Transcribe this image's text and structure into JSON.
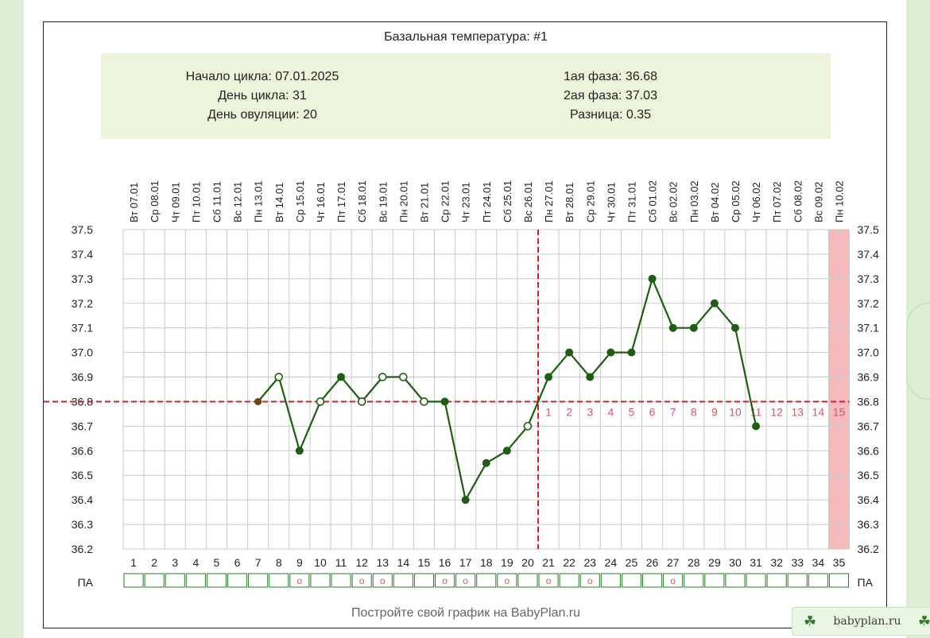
{
  "title": "Базальная температура: #1",
  "info": {
    "cycle_start": "Начало цикла: 07.01.2025",
    "cycle_day": "День цикла: 31",
    "ovulation_day": "День овуляции: 20",
    "phase1": "1ая фаза: 36.68",
    "phase2": "2ая фаза: 37.03",
    "difference": "Разница: 0.35"
  },
  "footer": "Постройте свой график на BabyPlan.ru",
  "watermark": {
    "text": "babyplan.ru",
    "icon": "clover-icon"
  },
  "colors": {
    "line": "#1e5e12",
    "coverline": "#d0202a",
    "info_bg": "#eaf5dc",
    "highlight_col": "#f6b9bb",
    "post_ov_labels": "#d05a6a",
    "pa_marker": "#d05a6a",
    "grid": "#c9c9c9"
  },
  "chart_data": {
    "type": "line",
    "title": "Базальная температура: #1",
    "day_labels": [
      "Вт 07.01",
      "Ср 08.01",
      "Чт 09.01",
      "Пт 10.01",
      "Сб 11.01",
      "Вс 12.01",
      "Пн 13.01",
      "Вт 14.01",
      "Ср 15.01",
      "Чт 16.01",
      "Пт 17.01",
      "Сб 18.01",
      "Вс 19.01",
      "Пн 20.01",
      "Вт 21.01",
      "Ср 22.01",
      "Чт 23.01",
      "Пт 24.01",
      "Сб 25.01",
      "Вс 26.01",
      "Пн 27.01",
      "Вт 28.01",
      "Ср 29.01",
      "Чт 30.01",
      "Пт 31.01",
      "Сб 01.02",
      "Вс 02.02",
      "Пн 03.02",
      "Вт 04.02",
      "Ср 05.02",
      "Чт 06.02",
      "Пт 07.02",
      "Сб 08.02",
      "Вс 09.02",
      "Пн 10.02"
    ],
    "x": [
      1,
      2,
      3,
      4,
      5,
      6,
      7,
      8,
      9,
      10,
      11,
      12,
      13,
      14,
      15,
      16,
      17,
      18,
      19,
      20,
      21,
      22,
      23,
      24,
      25,
      26,
      27,
      28,
      29,
      30,
      31,
      32,
      33,
      34,
      35
    ],
    "ylim": [
      36.2,
      37.5
    ],
    "yticks": [
      "36.2",
      "36.3",
      "36.4",
      "36.5",
      "36.6",
      "36.7",
      "36.8",
      "36.9",
      "37.0",
      "37.1",
      "37.2",
      "37.3",
      "37.4",
      "37.5"
    ],
    "grid": true,
    "series": [
      {
        "points": [
          {
            "day": 7,
            "temp": 36.8,
            "marker": "dot"
          },
          {
            "day": 8,
            "temp": 36.9,
            "marker": "open"
          },
          {
            "day": 9,
            "temp": 36.6,
            "marker": "filled"
          },
          {
            "day": 10,
            "temp": 36.8,
            "marker": "open"
          },
          {
            "day": 11,
            "temp": 36.9,
            "marker": "filled"
          },
          {
            "day": 12,
            "temp": 36.8,
            "marker": "open"
          },
          {
            "day": 13,
            "temp": 36.9,
            "marker": "open"
          },
          {
            "day": 14,
            "temp": 36.9,
            "marker": "open"
          },
          {
            "day": 15,
            "temp": 36.8,
            "marker": "open"
          },
          {
            "day": 16,
            "temp": 36.8,
            "marker": "filled"
          },
          {
            "day": 17,
            "temp": 36.4,
            "marker": "filled"
          },
          {
            "day": 18,
            "temp": 36.55,
            "marker": "filled"
          },
          {
            "day": 19,
            "temp": 36.6,
            "marker": "filled"
          },
          {
            "day": 20,
            "temp": 36.7,
            "marker": "open"
          },
          {
            "day": 21,
            "temp": 36.9,
            "marker": "filled"
          },
          {
            "day": 22,
            "temp": 37.0,
            "marker": "filled"
          },
          {
            "day": 23,
            "temp": 36.9,
            "marker": "filled"
          },
          {
            "day": 24,
            "temp": 37.0,
            "marker": "filled"
          },
          {
            "day": 25,
            "temp": 37.0,
            "marker": "filled"
          },
          {
            "day": 26,
            "temp": 37.3,
            "marker": "filled"
          },
          {
            "day": 27,
            "temp": 37.1,
            "marker": "filled"
          },
          {
            "day": 28,
            "temp": 37.1,
            "marker": "filled"
          },
          {
            "day": 29,
            "temp": 37.2,
            "marker": "filled"
          },
          {
            "day": 30,
            "temp": 37.1,
            "marker": "filled"
          },
          {
            "day": 31,
            "temp": 36.7,
            "marker": "filled"
          }
        ]
      }
    ],
    "coverline": 36.8,
    "ovulation_day": 20,
    "highlight_day": 35,
    "post_ovulation_labels": [
      "1",
      "2",
      "3",
      "4",
      "5",
      "6",
      "7",
      "8",
      "9",
      "10",
      "11",
      "12",
      "13",
      "14",
      "15"
    ],
    "pa_label": "ПА",
    "pa_days": [
      9,
      12,
      13,
      16,
      17,
      19,
      21,
      23,
      27
    ],
    "pa_marker": "o"
  }
}
